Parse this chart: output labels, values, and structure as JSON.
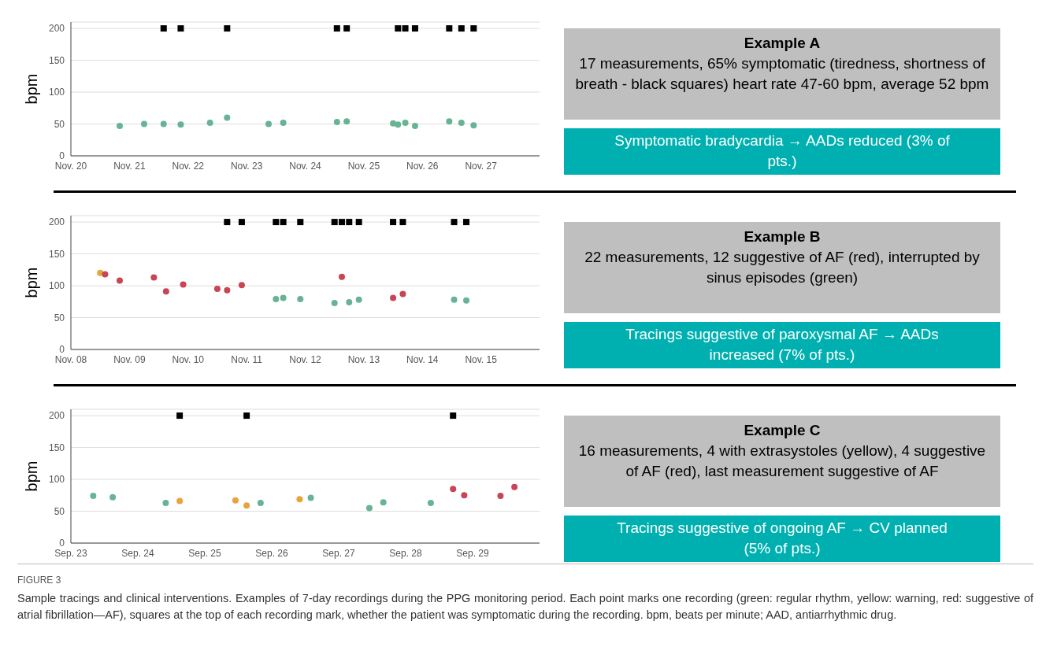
{
  "chart_data": [
    {
      "type": "scatter",
      "ylabel": "bpm",
      "xlim": [
        "--11-20",
        "--11-28"
      ],
      "xticks": [
        {
          "value": "--11-20",
          "label": "Nov. 20"
        },
        {
          "value": "--11-21",
          "label": "Nov. 21"
        },
        {
          "value": "--11-22",
          "label": "Nov. 22"
        },
        {
          "value": "--11-23",
          "label": "Nov. 23"
        },
        {
          "value": "--11-24",
          "label": "Nov. 24"
        },
        {
          "value": "--11-25",
          "label": "Nov. 25"
        },
        {
          "value": "--11-26",
          "label": "Nov. 26"
        },
        {
          "value": "--11-27",
          "label": "Nov. 27"
        }
      ],
      "ylim": [
        0,
        210
      ],
      "yticks": [
        0,
        50,
        100,
        150,
        200
      ],
      "grid": "y",
      "legend": false,
      "series": [
        {
          "color": "#67b494",
          "marker": "circle",
          "x": [
            "--11-20T20:00",
            "--11-21T06:00",
            "--11-21T14:00",
            "--11-21T21:00",
            "--11-22T09:00",
            "--11-22T16:00",
            "--11-23T09:00",
            "--11-23T15:00",
            "--11-24T13:00",
            "--11-24T17:00",
            "--11-25T12:00",
            "--11-25T14:00",
            "--11-25T17:00",
            "--11-25T21:00",
            "--11-26T11:00",
            "--11-26T16:00",
            "--11-26T21:00"
          ],
          "values": [
            47,
            50,
            50,
            49,
            52,
            60,
            50,
            52,
            53,
            54,
            51,
            49,
            52,
            47,
            54,
            52,
            48
          ]
        },
        {
          "color": "#000000",
          "marker": "square",
          "x": [
            "--11-21T14:00",
            "--11-21T21:00",
            "--11-22T16:00",
            "--11-24T13:00",
            "--11-24T17:00",
            "--11-25T14:00",
            "--11-25T17:00",
            "--11-25T21:00",
            "--11-26T11:00",
            "--11-26T16:00",
            "--11-26T21:00"
          ],
          "values": [
            200,
            200,
            200,
            200,
            200,
            200,
            200,
            200,
            200,
            200,
            200
          ]
        }
      ]
    },
    {
      "type": "other",
      "title": "Example A",
      "subtitle": "17 measurements, 65% symptomatic (tiredness, shortness of breath - black squares) heart rate 47-60 bpm, average 52 bpm",
      "annotations": [
        "Symptomatic bradycardia → AADs reduced (3% of pts.)"
      ]
    },
    {
      "type": "scatter",
      "ylabel": "bpm",
      "xlim": [
        "--11-08",
        "--11-16"
      ],
      "xticks": [
        {
          "value": "--11-08",
          "label": "Nov. 08"
        },
        {
          "value": "--11-09",
          "label": "Nov. 09"
        },
        {
          "value": "--11-10",
          "label": "Nov. 10"
        },
        {
          "value": "--11-11",
          "label": "Nov. 11"
        },
        {
          "value": "--11-12",
          "label": "Nov. 12"
        },
        {
          "value": "--11-13",
          "label": "Nov. 13"
        },
        {
          "value": "--11-14",
          "label": "Nov. 14"
        },
        {
          "value": "--11-15",
          "label": "Nov. 15"
        }
      ],
      "ylim": [
        0,
        210
      ],
      "yticks": [
        0,
        50,
        100,
        150,
        200
      ],
      "grid": "y",
      "legend": false,
      "series": [
        {
          "color": "#e8a33c",
          "marker": "circle",
          "x": [
            "--11-08T12:00"
          ],
          "values": [
            120
          ]
        },
        {
          "color": "#c94455",
          "marker": "circle",
          "x": [
            "--11-08T14:00",
            "--11-08T20:00",
            "--11-09T10:00",
            "--11-09T15:00",
            "--11-09T22:00",
            "--11-10T12:00",
            "--11-10T16:00",
            "--11-10T22:00",
            "--11-12T15:00",
            "--11-13T12:00",
            "--11-13T16:00"
          ],
          "values": [
            118,
            108,
            113,
            91,
            102,
            95,
            93,
            101,
            114,
            81,
            87
          ]
        },
        {
          "color": "#67b494",
          "marker": "circle",
          "x": [
            "--11-11T12:00",
            "--11-11T15:00",
            "--11-11T22:00",
            "--11-12T12:00",
            "--11-12T18:00",
            "--11-12T22:00",
            "--11-14T13:00",
            "--11-14T18:00"
          ],
          "values": [
            79,
            81,
            79,
            73,
            74,
            78,
            78,
            77
          ]
        },
        {
          "color": "#000000",
          "marker": "square",
          "x": [
            "--11-10T16:00",
            "--11-10T22:00",
            "--11-11T12:00",
            "--11-11T15:00",
            "--11-11T22:00",
            "--11-12T12:00",
            "--11-12T15:00",
            "--11-12T18:00",
            "--11-12T22:00",
            "--11-13T12:00",
            "--11-13T16:00",
            "--11-14T13:00",
            "--11-14T18:00"
          ],
          "values": [
            200,
            200,
            200,
            200,
            200,
            200,
            200,
            200,
            200,
            200,
            200,
            200,
            200
          ]
        }
      ]
    },
    {
      "type": "other",
      "title": "Example B",
      "subtitle": "22 measurements, 12 suggestive of AF (red), interrupted by sinus episodes (green)",
      "annotations": [
        "Tracings suggestive of paroxysmal AF → AADs increased (7% of pts.)"
      ]
    },
    {
      "type": "scatter",
      "ylabel": "bpm",
      "xlim": [
        "--09-23",
        "--09-30"
      ],
      "xticks": [
        {
          "value": "--09-23",
          "label": "Sep. 23"
        },
        {
          "value": "--09-24",
          "label": "Sep. 24"
        },
        {
          "value": "--09-25",
          "label": "Sep. 25"
        },
        {
          "value": "--09-26",
          "label": "Sep. 26"
        },
        {
          "value": "--09-27",
          "label": "Sep. 27"
        },
        {
          "value": "--09-28",
          "label": "Sep. 28"
        },
        {
          "value": "--09-29",
          "label": "Sep. 29"
        }
      ],
      "ylim": [
        0,
        210
      ],
      "yticks": [
        0,
        50,
        100,
        150,
        200
      ],
      "grid": "y",
      "legend": false,
      "annotations": [
        "FIGURE 3",
        "Sample tracings and clinical interventions. Examples of 7-day recordings during the PPG monitoring period. Each point marks one recording (green: regular rhythm, yellow: warning, red: suggestive of atrial fibrillation—AF), squares at the top of each recording mark, whether the patient was symptomatic during the recording. bpm, beats per minute; AAD, antiarrhythmic drug."
      ],
      "series": [
        {
          "color": "#67b494",
          "marker": "circle",
          "x": [
            "--09-23T08:00",
            "--09-23T15:00",
            "--09-24T10:00",
            "--09-25T20:00",
            "--09-26T14:00",
            "--09-27T11:00",
            "--09-27T16:00",
            "--09-28T09:00"
          ],
          "values": [
            74,
            72,
            63,
            63,
            71,
            55,
            64,
            63
          ]
        },
        {
          "color": "#e8a33c",
          "marker": "circle",
          "x": [
            "--09-24T15:00",
            "--09-25T11:00",
            "--09-25T15:00",
            "--09-26T10:00"
          ],
          "values": [
            66,
            67,
            59,
            69
          ]
        },
        {
          "color": "#c94455",
          "marker": "circle",
          "x": [
            "--09-28T17:00",
            "--09-28T21:00",
            "--09-29T10:00",
            "--09-29T15:00"
          ],
          "values": [
            85,
            75,
            74,
            88
          ]
        },
        {
          "color": "#000000",
          "marker": "square",
          "x": [
            "--09-24T15:00",
            "--09-25T15:00",
            "--09-28T17:00"
          ],
          "values": [
            200,
            200,
            200
          ]
        }
      ]
    },
    {
      "type": "other",
      "title": "Example C",
      "subtitle": "16 measurements, 4 with extrasystoles (yellow), 4 suggestive of AF (red), last measurement suggestive of AF",
      "annotations": [
        "Tracings suggestive of ongoing AF → CV planned (5% of pts.)"
      ]
    }
  ]
}
